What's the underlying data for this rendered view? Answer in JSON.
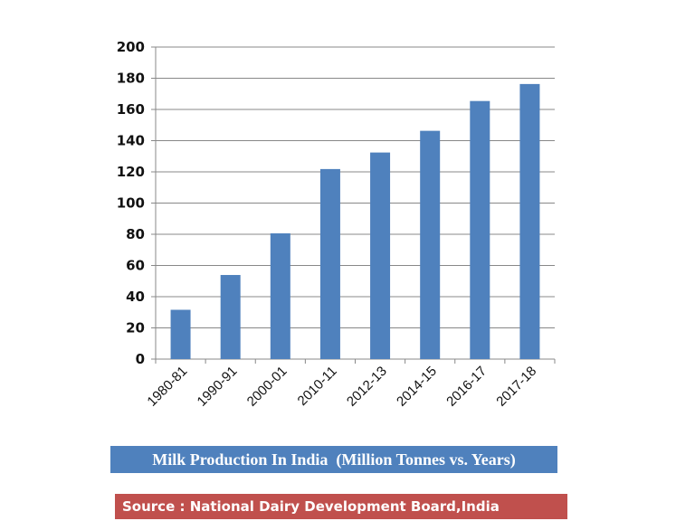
{
  "chart_data": {
    "type": "bar",
    "title": "Milk Production In India  (Million Tonnes vs. Years)",
    "source": "Source : National Dairy Development Board,India",
    "categories": [
      "1980-81",
      "1990-91",
      "2000-01",
      "2010-11",
      "2012-13",
      "2014-15",
      "2016-17",
      "2017-18"
    ],
    "values": [
      31.6,
      53.9,
      80.6,
      121.8,
      132.4,
      146.3,
      165.4,
      176.3
    ],
    "ylim": [
      0,
      200
    ],
    "yticks": [
      0,
      20,
      40,
      60,
      80,
      100,
      120,
      140,
      160,
      180,
      200
    ],
    "grid": true,
    "legend": "none",
    "colors": {
      "bar": "#4f81bd",
      "title_bg": "#4f81bd",
      "source_bg": "#c0504d"
    }
  }
}
